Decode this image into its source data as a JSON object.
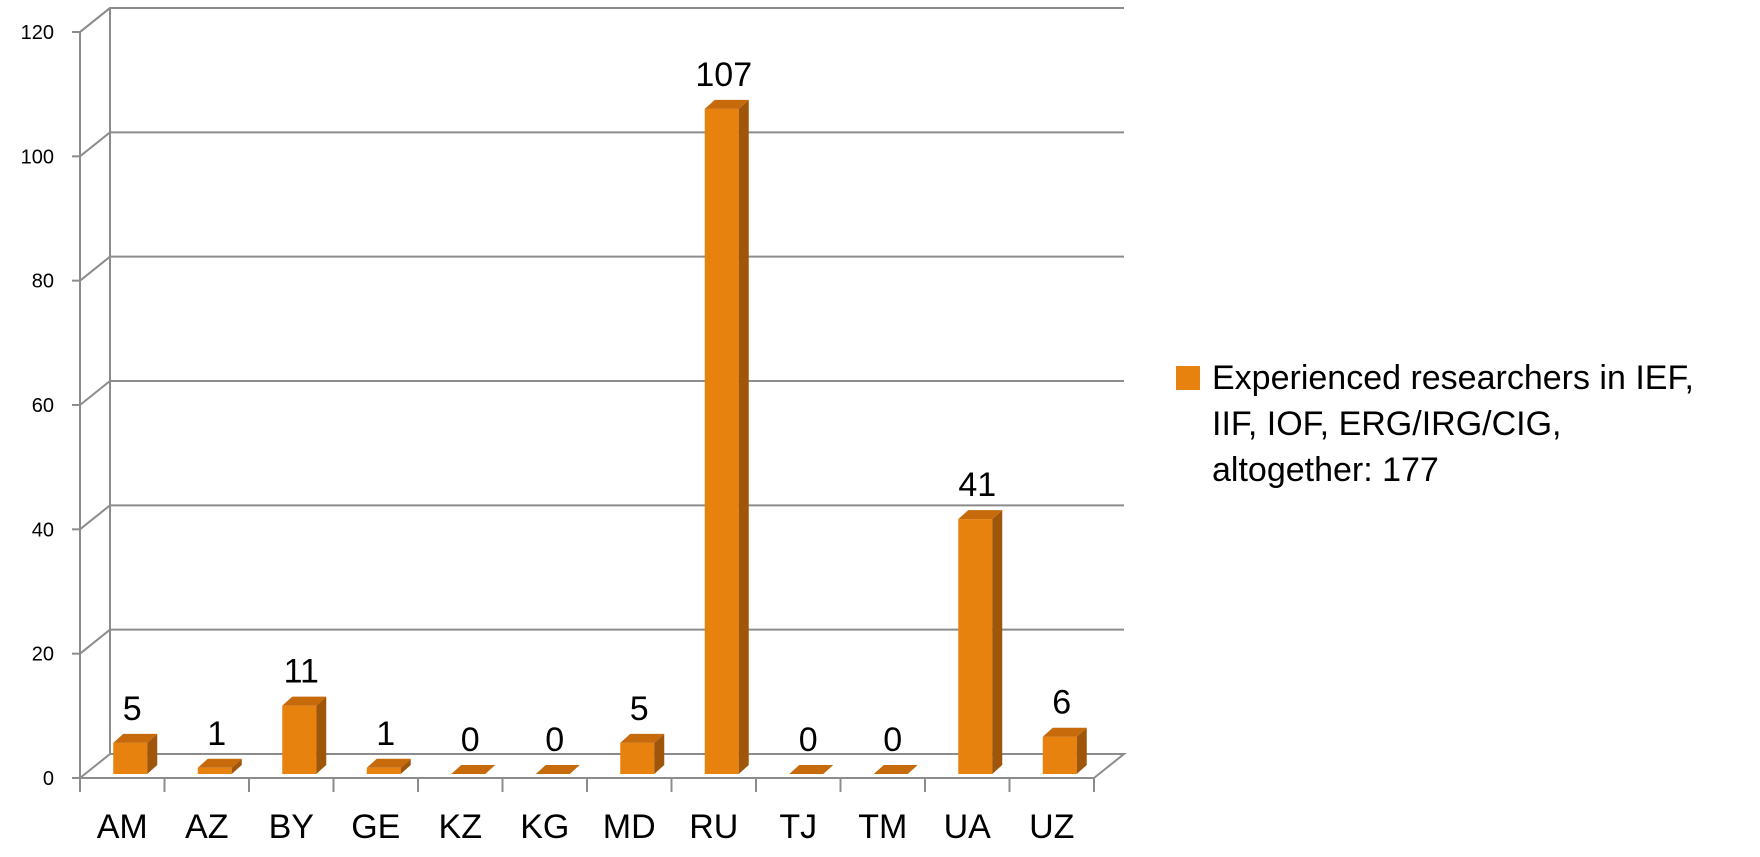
{
  "chart_data": {
    "type": "bar",
    "categories": [
      "AM",
      "AZ",
      "BY",
      "GE",
      "KZ",
      "KG",
      "MD",
      "RU",
      "TJ",
      "TM",
      "UA",
      "UZ"
    ],
    "series": [
      {
        "name": "Experienced researchers in IEF, IIF, IOF, ERG/IRG/CIG, altogether: 177",
        "values": [
          5,
          1,
          11,
          1,
          0,
          0,
          5,
          107,
          0,
          0,
          41,
          6
        ],
        "color": "#E8820E"
      }
    ],
    "yticks": [
      "0",
      "20",
      "40",
      "60",
      "80",
      "100",
      "120"
    ],
    "ylim": [
      0,
      120
    ],
    "data_labels": true,
    "grid": true,
    "legend_position": "right",
    "style_3d": true,
    "legend": {
      "lines": [
        "Experienced researchers in IEF,",
        "IIF, IOF, ERG/IRG/CIG,",
        "altogether: 177"
      ]
    }
  }
}
